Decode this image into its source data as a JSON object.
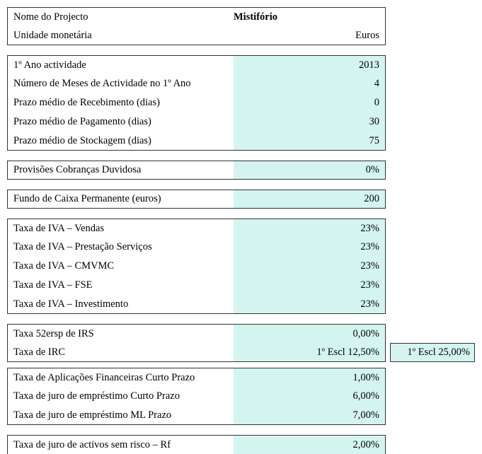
{
  "colors": {
    "fill": "#d4f4f0",
    "background": "#ffffff",
    "border": "#333333",
    "text": "#000000"
  },
  "header": {
    "project_label": "Nome do Projecto",
    "project_value": "Mistifório",
    "currency_label": "Unidade monetária",
    "currency_value": "Euros"
  },
  "section1": {
    "r1_label": "1º Ano actividade",
    "r1_value": "2013",
    "r2_label": "Número de Meses de Actividade no 1º Ano",
    "r2_value": "4",
    "r3_label": "Prazo médio de Recebimento (dias)",
    "r3_value": "0",
    "r4_label": "Prazo médio de Pagamento (dias)",
    "r4_value": "30",
    "r5_label": "Prazo médio de Stockagem (dias)",
    "r5_value": "75"
  },
  "provisoes": {
    "label": "Provisões Cobranças Duvidosa",
    "value": "0%"
  },
  "fundo": {
    "label": "Fundo de Caixa Permanente (euros)",
    "value": "200"
  },
  "iva": {
    "r1_label": "Taxa de IVA – Vendas",
    "r1_value": "23%",
    "r2_label": "Taxa de IVA – Prestação Serviços",
    "r2_value": "23%",
    "r3_label": "Taxa de IVA – CMVMC",
    "r3_value": "23%",
    "r4_label": "Taxa de IVA – FSE",
    "r4_value": "23%",
    "r5_label": "Taxa de IVA – Investimento",
    "r5_value": "23%"
  },
  "taxas_fiscais": {
    "r1_label": "Taxa 52ersp de IRS",
    "r1_value": "0,00%",
    "r2_label": "Taxa de IRC",
    "r2_value": "1º Escl 12,50%",
    "r2_extra": "1º Escl 25,00%"
  },
  "juros": {
    "r1_label": "Taxa de Aplicações Financeiras Curto Prazo",
    "r1_value": "1,00%",
    "r2_label": "Taxa de juro de empréstimo Curto Prazo",
    "r2_value": "6,00%",
    "r3_label": "Taxa de juro de empréstimo ML Prazo",
    "r3_value": "7,00%"
  },
  "rf": {
    "label": "Taxa de juro de activos sem risco – Rf",
    "value": "2,00%"
  }
}
